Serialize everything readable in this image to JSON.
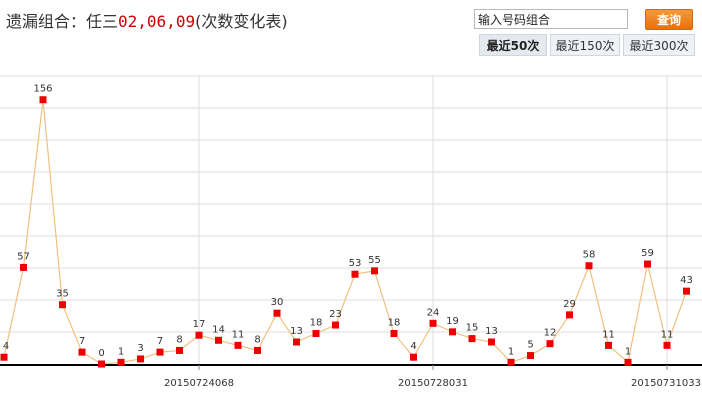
{
  "header": {
    "title_prefix": "遗漏组合：任三",
    "title_numbers": "02,06,09",
    "title_suffix": "(次数变化表)"
  },
  "search": {
    "value": "输入号码组合",
    "button_label": "查询"
  },
  "tabs": [
    {
      "label": "最近50次",
      "active": true
    },
    {
      "label": "最近150次",
      "active": false
    },
    {
      "label": "最近300次",
      "active": false
    }
  ],
  "chart_data": {
    "type": "line",
    "title": "",
    "xlabel": "",
    "ylabel": "",
    "ylim": [
      0,
      170
    ],
    "values": [
      4,
      57,
      156,
      35,
      7,
      0,
      1,
      3,
      7,
      8,
      17,
      14,
      11,
      8,
      30,
      13,
      18,
      23,
      53,
      55,
      18,
      4,
      24,
      19,
      15,
      13,
      1,
      5,
      12,
      29,
      58,
      11,
      1,
      59,
      11,
      43
    ],
    "x_tick_labels": [
      {
        "index": 10,
        "label": "20150724068"
      },
      {
        "index": 22,
        "label": "20150728031"
      },
      {
        "index": 34,
        "label": "20150731033"
      }
    ],
    "colors": {
      "line": "#f0c080",
      "point": "#ee0000",
      "grid": "#dedede",
      "axis": "#000000"
    },
    "grid": true
  }
}
